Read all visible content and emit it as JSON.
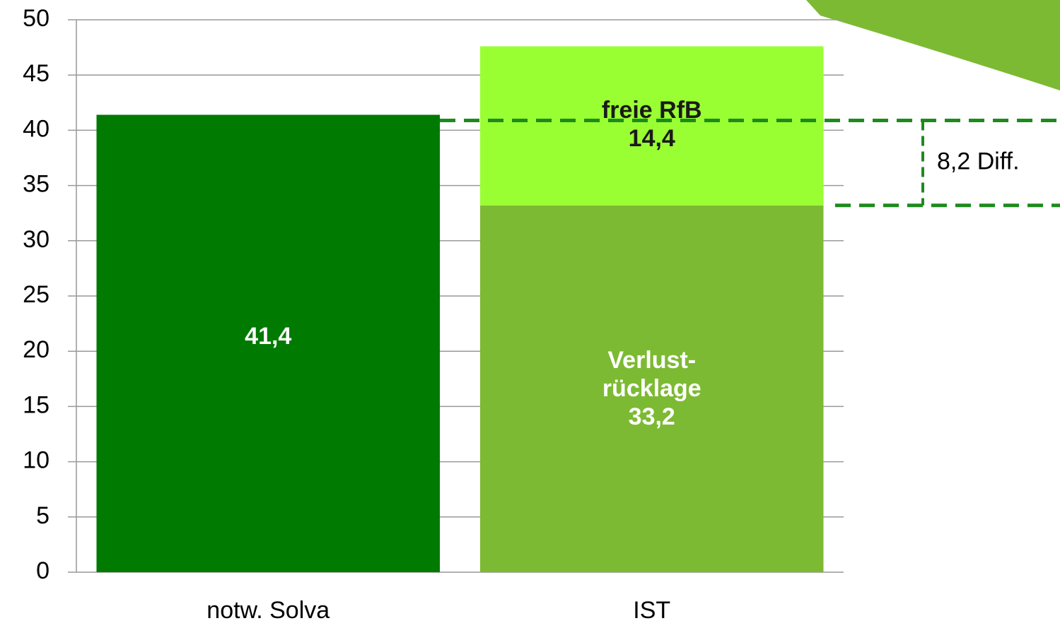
{
  "chart_data": {
    "type": "stacked-bar",
    "categories": [
      "notw. Solva",
      "IST"
    ],
    "series": [
      {
        "color": "#007a00",
        "values": [
          41.4,
          null
        ],
        "value_labels": [
          "41,4",
          null
        ]
      },
      {
        "name": "Verlust-\nrücklage",
        "color": "#7dba33",
        "values": [
          null,
          33.2
        ],
        "value_labels": [
          null,
          "33,2"
        ]
      },
      {
        "name": "freie RfB",
        "color": "#99ff33",
        "values": [
          null,
          14.4
        ],
        "value_labels": [
          null,
          "14,4"
        ]
      }
    ],
    "annotation": "8,2 Diff.",
    "ylim": [
      0,
      50
    ],
    "yticks": [
      0,
      5,
      10,
      15,
      20,
      25,
      30,
      35,
      40,
      45,
      50
    ],
    "grid": true
  }
}
